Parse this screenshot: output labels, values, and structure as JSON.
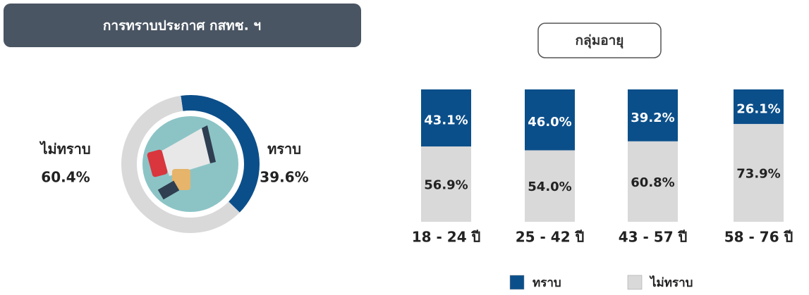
{
  "chart_data": [
    {
      "type": "pie",
      "title": "การทราบประกาศ กสทช. ฯ",
      "categories": [
        "ทราบ",
        "ไม่ทราบ"
      ],
      "values": [
        39.6,
        60.4
      ],
      "value_labels": [
        "39.6%",
        "60.4%"
      ],
      "colors": [
        "#0b4f8a",
        "#d9d9d9"
      ]
    },
    {
      "type": "bar",
      "stacked": true,
      "title": "กลุ่มอายุ",
      "categories": [
        "18 - 24 ปี",
        "25 - 42 ปี",
        "43 - 57 ปี",
        "58 - 76 ปี"
      ],
      "series": [
        {
          "name": "ทราบ",
          "color": "#0b4f8a",
          "values": [
            43.1,
            46.0,
            39.2,
            26.1
          ],
          "value_labels": [
            "43.1%",
            "46.0%",
            "39.2%",
            "26.1%"
          ]
        },
        {
          "name": "ไม่ทราบ",
          "color": "#d9d9d9",
          "values": [
            56.9,
            54.0,
            60.8,
            73.9
          ],
          "value_labels": [
            "56.9%",
            "54.0%",
            "60.8%",
            "73.9%"
          ]
        }
      ]
    }
  ]
}
